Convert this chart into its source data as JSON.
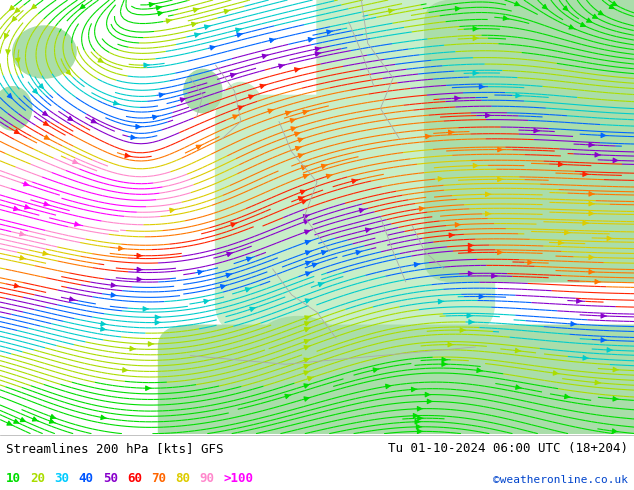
{
  "title_left": "Streamlines 200 hPa [kts] GFS",
  "title_right": "Tu 01-10-2024 06:00 UTC (18+204)",
  "credit": "©weatheronline.co.uk",
  "legend_values": [
    "10",
    "20",
    "30",
    "40",
    "50",
    "60",
    "70",
    "80",
    "90",
    ">100"
  ],
  "legend_colors": [
    "#00dd00",
    "#aadd00",
    "#00ccff",
    "#0055ff",
    "#8800cc",
    "#ff0000",
    "#ff6600",
    "#ddcc00",
    "#ff88cc",
    "#ff00ff"
  ],
  "bg_ocean": "#e8e8e8",
  "bg_land": "#c8eec8",
  "bg_green": "#aaddaa",
  "fig_bg": "#ffffff",
  "title_fontsize": 9,
  "legend_fontsize": 9,
  "credit_fontsize": 8,
  "figsize": [
    6.34,
    4.9
  ],
  "dpi": 100,
  "speed_thresholds": [
    10,
    20,
    30,
    40,
    50,
    60,
    70,
    80,
    90,
    100
  ],
  "speed_colors": [
    "#00dd00",
    "#aadd00",
    "#00cccc",
    "#0066ff",
    "#8800cc",
    "#ff2200",
    "#ff7700",
    "#ddcc00",
    "#ff88cc",
    "#ff00ff"
  ]
}
